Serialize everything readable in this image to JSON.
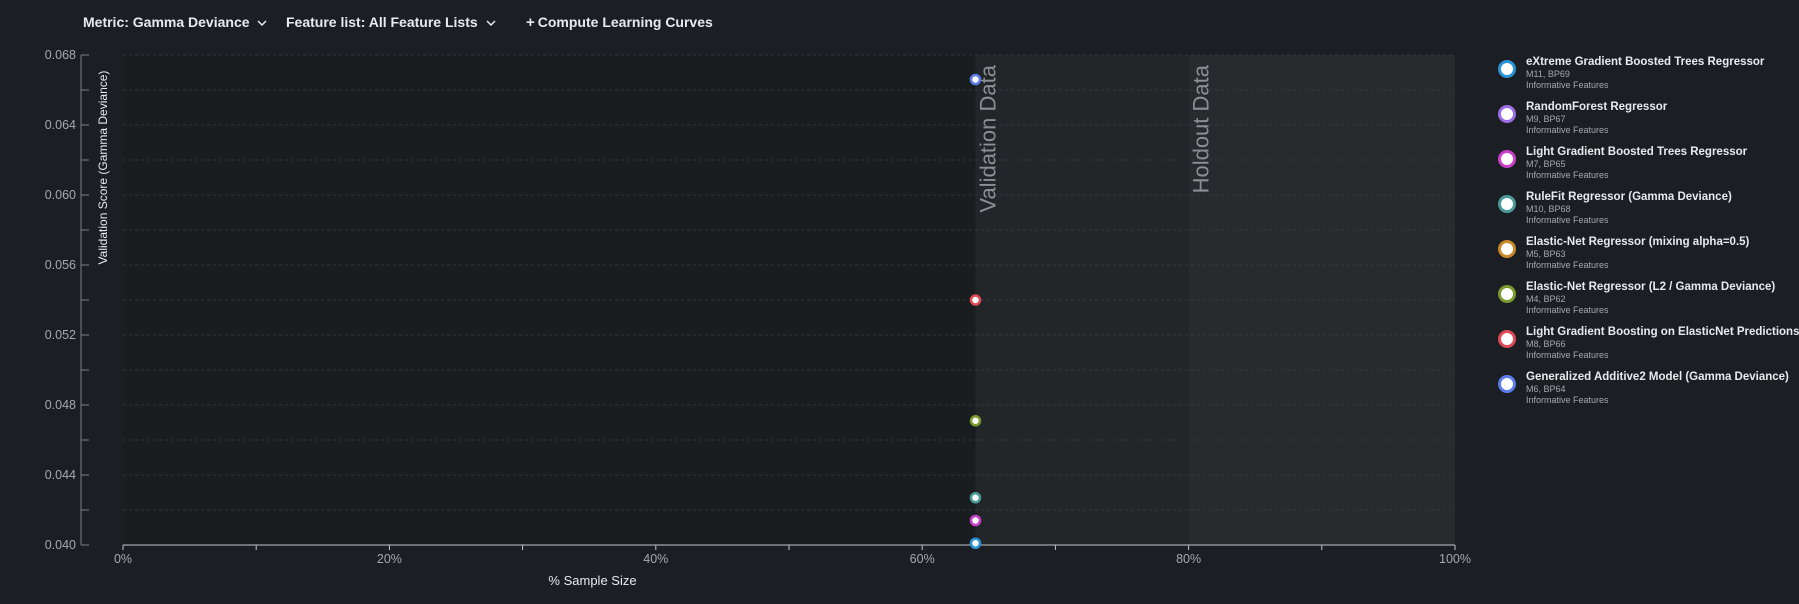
{
  "toolbar": {
    "metric_label": "Metric: Gamma Deviance",
    "featurelist_label": "Feature list: All Feature Lists",
    "compute_label": "Compute Learning Curves"
  },
  "chart_data": {
    "type": "scatter",
    "xlabel": "% Sample Size",
    "ylabel": "Validation Score (Gamma Deviance)",
    "xlim": [
      0,
      100
    ],
    "ylim": [
      0.04,
      0.068
    ],
    "x_ticks": [
      "0%",
      "20%",
      "40%",
      "60%",
      "80%",
      "100%"
    ],
    "y_ticks": [
      "0.068",
      "0.064",
      "0.060",
      "0.056",
      "0.052",
      "0.048",
      "0.044",
      "0.040"
    ],
    "y_tick_values": [
      0.068,
      0.064,
      0.06,
      0.056,
      0.052,
      0.048,
      0.044,
      0.04
    ],
    "regions": [
      {
        "label": "Validation Data",
        "start": 64,
        "end": 80,
        "color": "#232629"
      },
      {
        "label": "Holdout Data",
        "start": 80,
        "end": 100,
        "color": "#282b2e"
      }
    ],
    "grid": true,
    "series": [
      {
        "name": "eXtreme Gradient Boosted Trees Regressor",
        "id": "M11, BP69",
        "featurelist": "Informative Features",
        "color": "#2a93d5",
        "x": 64,
        "y": 0.0401
      },
      {
        "name": "RandomForest Regressor",
        "id": "M9, BP67",
        "featurelist": "Informative Features",
        "color": "#9b6ce3",
        "x": 64,
        "y": null
      },
      {
        "name": "Light Gradient Boosted Trees Regressor",
        "id": "M7, BP65",
        "featurelist": "Informative Features",
        "color": "#c940c9",
        "x": 64,
        "y": 0.0414
      },
      {
        "name": "RuleFit Regressor (Gamma Deviance)",
        "id": "M10, BP68",
        "featurelist": "Informative Features",
        "color": "#4a9a9a",
        "x": 64,
        "y": 0.0427
      },
      {
        "name": "Elastic-Net Regressor (mixing alpha=0.5)",
        "id": "M5, BP63",
        "featurelist": "Informative Features",
        "color": "#c98a2a",
        "x": 64,
        "y": null
      },
      {
        "name": "Elastic-Net Regressor (L2 / Gamma Deviance)",
        "id": "M4, BP62",
        "featurelist": "Informative Features",
        "color": "#7a9a30",
        "x": 64,
        "y": 0.0471
      },
      {
        "name": "Light Gradient Boosting on ElasticNet Predictions",
        "id": "M8, BP66",
        "featurelist": "Informative Features",
        "color": "#e04a55",
        "x": 64,
        "y": 0.054
      },
      {
        "name": "Generalized Additive2 Model (Gamma Deviance)",
        "id": "M6, BP64",
        "featurelist": "Informative Features",
        "color": "#5a7be8",
        "x": 64,
        "y": 0.0666
      }
    ]
  }
}
